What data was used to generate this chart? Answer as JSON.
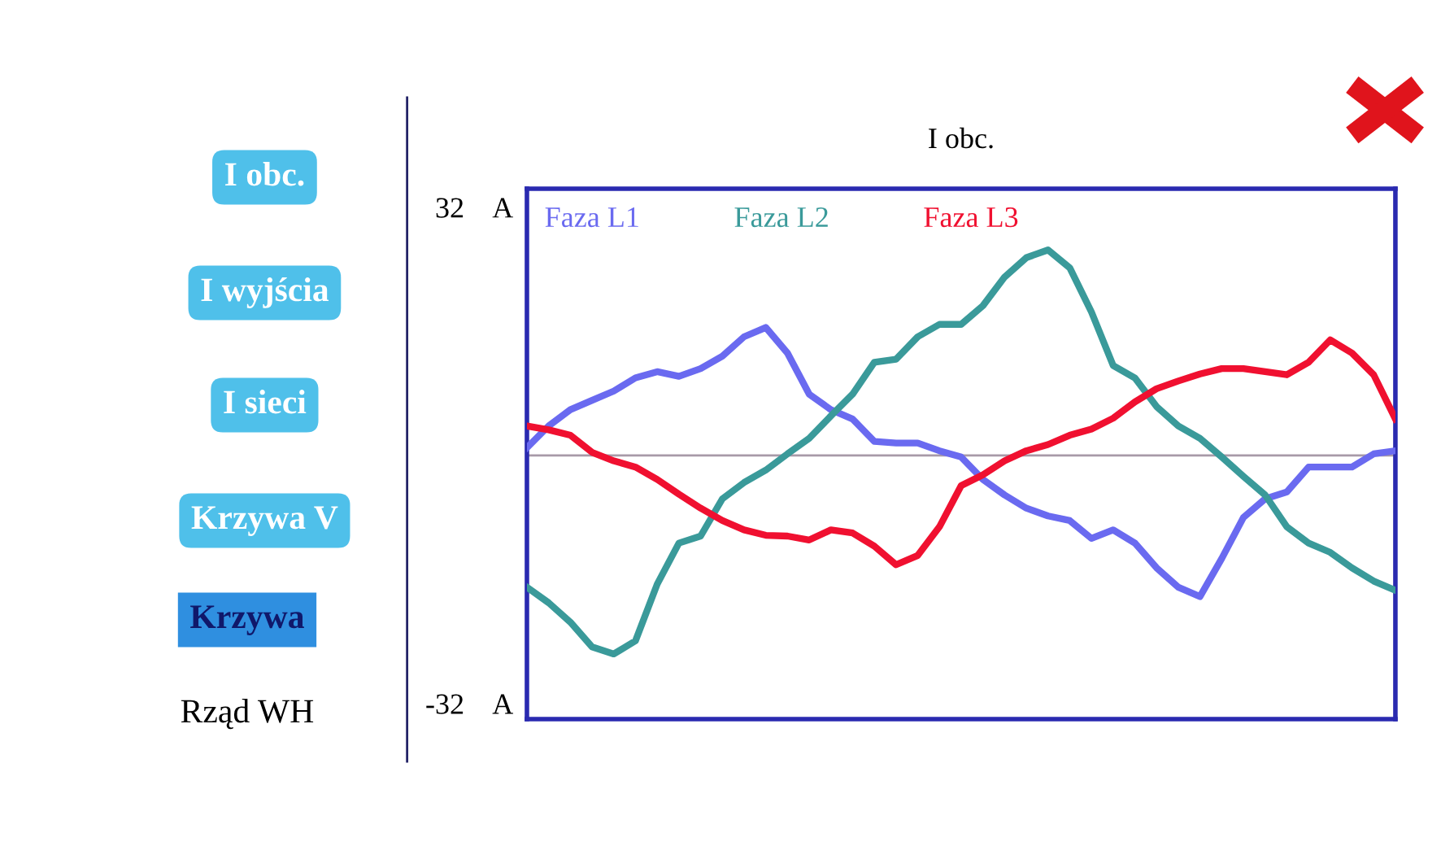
{
  "chart_data": {
    "type": "line",
    "title": "I obc.",
    "categories": [
      null,
      null,
      null,
      null,
      null,
      null,
      null,
      null,
      null,
      null,
      null,
      null,
      null,
      null,
      null,
      null,
      null,
      null,
      null,
      null,
      null,
      null,
      null,
      null,
      null,
      null,
      null,
      null,
      null,
      null,
      null,
      null,
      null,
      null,
      null,
      null,
      null,
      null,
      null,
      null,
      null
    ],
    "series": [
      {
        "name": "Faza L1",
        "color": "#6a6af0",
        "values": [
          1.0,
          3.8,
          5.9,
          7.1,
          8.3,
          10.0,
          10.8,
          10.2,
          11.2,
          12.8,
          15.3,
          16.5,
          13.2,
          7.9,
          5.9,
          4.7,
          1.8,
          1.6,
          1.6,
          0.6,
          -0.2,
          -3.1,
          -5.1,
          -6.8,
          -7.8,
          -8.4,
          -10.7,
          -9.6,
          -11.3,
          -14.5,
          -17.0,
          -18.2,
          -13.3,
          -8.0,
          -5.6,
          -4.7,
          -1.5,
          -1.5,
          -1.5,
          0.2,
          0.6
        ]
      },
      {
        "name": "Faza L2",
        "color": "#3a9a9a",
        "values": [
          -17.0,
          -19.0,
          -21.5,
          -24.7,
          -25.6,
          -23.9,
          -16.6,
          -11.3,
          -10.4,
          -5.6,
          -3.5,
          -1.9,
          0.2,
          2.2,
          5.1,
          7.9,
          12.0,
          12.4,
          15.3,
          16.9,
          16.9,
          19.3,
          23.0,
          25.5,
          26.5,
          24.2,
          18.5,
          11.6,
          10.0,
          6.3,
          3.8,
          2.2,
          -0.2,
          -2.7,
          -5.1,
          -9.2,
          -11.3,
          -12.5,
          -14.5,
          -16.2,
          -17.4
        ]
      },
      {
        "name": "Faza L3",
        "color": "#f01030",
        "values": [
          3.8,
          3.3,
          2.6,
          0.4,
          -0.7,
          -1.5,
          -3.1,
          -5.0,
          -6.8,
          -8.4,
          -9.6,
          -10.3,
          -10.4,
          -10.9,
          -9.6,
          -10.0,
          -11.7,
          -14.1,
          -12.9,
          -9.2,
          -3.9,
          -2.5,
          -0.7,
          0.6,
          1.4,
          2.6,
          3.4,
          4.8,
          6.9,
          8.6,
          9.6,
          10.5,
          11.2,
          11.2,
          10.8,
          10.4,
          12.0,
          14.9,
          13.2,
          10.4,
          4.7
        ]
      }
    ],
    "ylim": [
      -34,
      34.4
    ],
    "yticks": [
      {
        "value": 32,
        "label": "32    A"
      },
      {
        "value": -32,
        "label": "-32    A"
      }
    ],
    "ref_lines": [
      {
        "axis": "y",
        "value": 0,
        "color": "#a89aa8"
      }
    ],
    "legend": "top left",
    "grid": false,
    "annotations": [
      "I obc.",
      "I wyjścia",
      "I sieci",
      "Krzywa V",
      "Krzywa",
      "Rząd WH"
    ]
  }
}
